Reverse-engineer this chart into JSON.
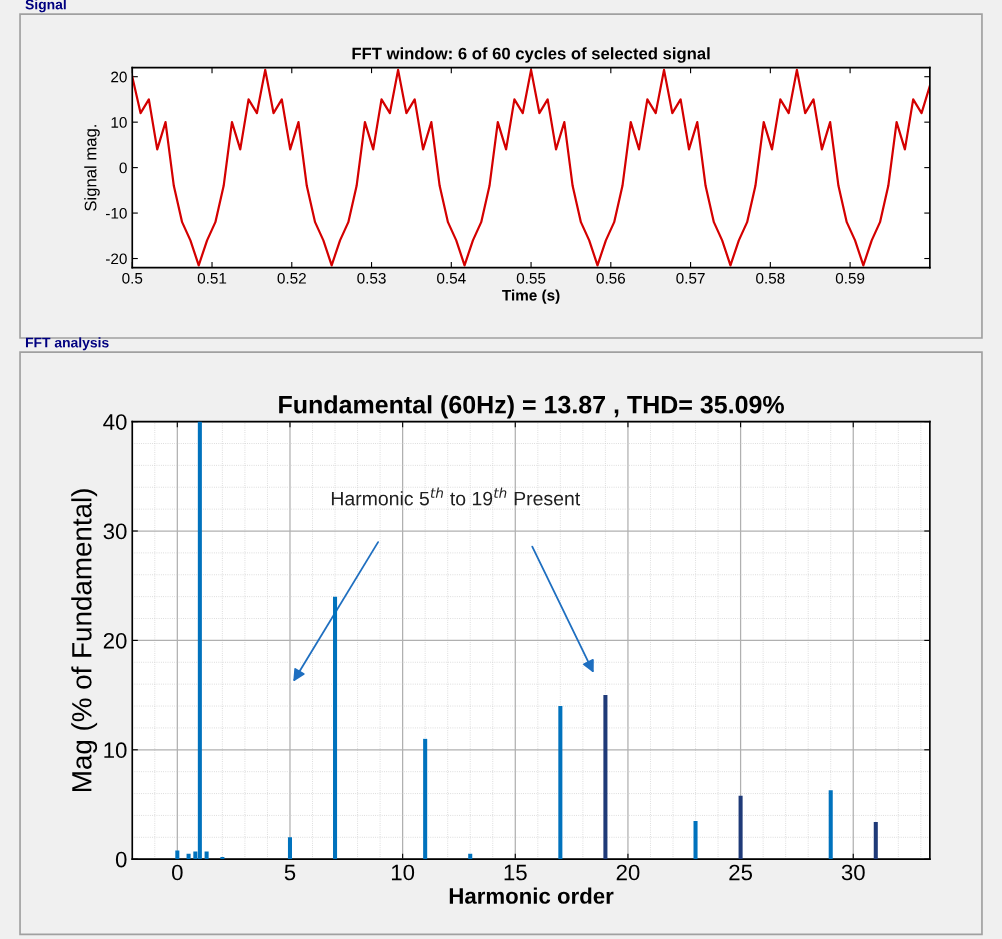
{
  "chart_data": [
    {
      "type": "line",
      "title": "FFT window: 6 of 60 cycles of selected signal",
      "xlabel": "Time (s)",
      "ylabel": "Signal mag.",
      "annotations": [
        "Signal"
      ],
      "series": [
        {
          "color": "#d40000",
          "x": [
            0.5,
            0.50104,
            0.50208,
            0.50313,
            0.50417,
            0.50521,
            0.50625,
            0.50729,
            0.50833,
            0.50938,
            0.51042,
            0.51146,
            0.5125,
            0.51354,
            0.51458,
            0.51563,
            0.51667,
            0.51771,
            0.51875,
            0.5198,
            0.52084,
            0.52188,
            0.52292,
            0.52396,
            0.525,
            0.52605,
            0.52709,
            0.52813,
            0.52917,
            0.53021,
            0.53125,
            0.5323,
            0.53333,
            0.53437,
            0.53541,
            0.53646,
            0.5375,
            0.53854,
            0.53958,
            0.54062,
            0.54166,
            0.54271,
            0.54375,
            0.54479,
            0.54583,
            0.54687,
            0.54791,
            0.54896,
            0.55,
            0.55104,
            0.55208,
            0.55313,
            0.55417,
            0.55521,
            0.55625,
            0.55729,
            0.55833,
            0.55938,
            0.56042,
            0.56146,
            0.5625,
            0.56354,
            0.56458,
            0.56563,
            0.56667,
            0.56771,
            0.56875,
            0.5698,
            0.57084,
            0.57188,
            0.57292,
            0.57396,
            0.575,
            0.57605,
            0.57709,
            0.57813,
            0.57917,
            0.58021,
            0.58125,
            0.5823,
            0.58333,
            0.58437,
            0.58541,
            0.58646,
            0.5875,
            0.58854,
            0.58958,
            0.59062,
            0.59166,
            0.59271,
            0.59375,
            0.59479,
            0.59583,
            0.59687,
            0.59791,
            0.59896,
            0.6
          ],
          "values": [
            20,
            12,
            15,
            4,
            10,
            -4,
            -12,
            -16,
            -21.5,
            -16,
            -12,
            -4,
            10,
            4,
            15,
            12,
            21.5,
            12,
            15,
            4,
            10,
            -4,
            -12,
            -16,
            -21.5,
            -16,
            -12,
            -4,
            10,
            4,
            15,
            12,
            21.5,
            12,
            15,
            4,
            10,
            -4,
            -12,
            -16,
            -21.5,
            -16,
            -12,
            -4,
            10,
            4,
            15,
            12,
            21.5,
            12,
            15,
            4,
            10,
            -4,
            -12,
            -16,
            -21.5,
            -16,
            -12,
            -4,
            10,
            4,
            15,
            12,
            21.5,
            12,
            15,
            4,
            10,
            -4,
            -12,
            -16,
            -21.5,
            -16,
            -12,
            -4,
            10,
            4,
            15,
            12,
            21.5,
            12,
            15,
            4,
            10,
            -4,
            -12,
            -16,
            -21.5,
            -16,
            -12,
            -4,
            10,
            4,
            15,
            12,
            18
          ]
        }
      ],
      "xlim": [
        0.5,
        0.6
      ],
      "xticks": [
        0.5,
        0.51,
        0.52,
        0.53,
        0.54,
        0.55,
        0.56,
        0.57,
        0.58,
        0.59
      ],
      "ylim": [
        -22,
        22
      ],
      "yticks": [
        -20,
        -10,
        0,
        10,
        20
      ],
      "grid": false,
      "marker": "none",
      "line_style": "solid"
    },
    {
      "type": "bar",
      "title": "Fundamental (60Hz) = 13.87 , THD= 35.09%",
      "xlabel": "Harmonic order",
      "ylabel": "Mag (% of Fundamental)",
      "annotations": [
        "FFT analysis",
        "Harmonic 5$^{th}$ to 19$^{th}$ Present"
      ],
      "x": [
        0,
        0.5,
        0.8,
        1,
        1.3,
        2,
        5,
        7,
        11,
        13,
        17,
        19,
        23,
        25,
        29,
        31
      ],
      "values": [
        0.8,
        0.5,
        0.7,
        40,
        0.7,
        0.2,
        2,
        24,
        11,
        0.5,
        14,
        15,
        3.5,
        5.8,
        6.3,
        3.4
      ],
      "colors": [
        "#0072bd",
        "#0072bd",
        "#0072bd",
        "#0072bd",
        "#0072bd",
        "#0072bd",
        "#0072bd",
        "#0072bd",
        "#0072bd",
        "#0072bd",
        "#0072bd",
        "#1f3a78",
        "#0072bd",
        "#1f3a78",
        "#0072bd",
        "#1f3a78"
      ],
      "xlim": [
        -2,
        33.4
      ],
      "xticks": [
        0,
        5,
        10,
        15,
        20,
        25,
        30
      ],
      "ylim": [
        0,
        40
      ],
      "yticks": [
        0,
        10,
        20,
        30,
        40
      ],
      "grid": true
    }
  ]
}
